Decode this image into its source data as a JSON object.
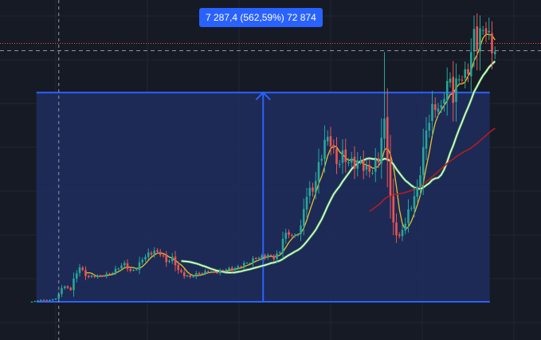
{
  "colors": {
    "background": "#161a25",
    "grid": "#232734",
    "measure_fill": "#1e2c5c",
    "measure_line": "#2962ff",
    "candle_up": "#26a69a",
    "candle_down": "#ef5350",
    "ma_fast": "#e6c229",
    "ma_mid_white": "#ffffff",
    "ma_mid_green": "#4caf50",
    "ma_slow": "#b71c1c",
    "crosshair": "#9598a1",
    "last_price_line": "#ef5350"
  },
  "measure_tool": {
    "label": "7 287,4 (562,59%) 72 874",
    "price_change": 7287.4,
    "percent_change": 562.59,
    "bars": 72874
  },
  "chart_data": {
    "type": "candlestick",
    "title": "",
    "xlabel": "",
    "ylabel": "",
    "ylim": [
      -250,
      10000
    ],
    "grid": true,
    "close_anchors": [
      [
        0,
        0
      ],
      [
        3,
        60
      ],
      [
        6,
        60
      ],
      [
        8,
        110
      ],
      [
        9,
        260
      ],
      [
        10,
        480
      ],
      [
        11,
        520
      ],
      [
        13,
        430
      ],
      [
        14,
        800
      ],
      [
        16,
        1230
      ],
      [
        18,
        900
      ],
      [
        19,
        850
      ],
      [
        21,
        900
      ],
      [
        23,
        920
      ],
      [
        25,
        940
      ],
      [
        27,
        1000
      ],
      [
        29,
        1200
      ],
      [
        31,
        1350
      ],
      [
        33,
        1050
      ],
      [
        35,
        1130
      ],
      [
        37,
        1500
      ],
      [
        39,
        1700
      ],
      [
        41,
        1750
      ],
      [
        43,
        1650
      ],
      [
        45,
        1400
      ],
      [
        47,
        1550
      ],
      [
        49,
        1100
      ],
      [
        51,
        900
      ],
      [
        53,
        860
      ],
      [
        55,
        980
      ],
      [
        57,
        1000
      ],
      [
        59,
        1050
      ],
      [
        61,
        1010
      ],
      [
        63,
        1080
      ],
      [
        65,
        1150
      ],
      [
        67,
        1100
      ],
      [
        69,
        1200
      ],
      [
        71,
        1350
      ],
      [
        73,
        1400
      ],
      [
        75,
        1500
      ],
      [
        77,
        1550
      ],
      [
        79,
        1650
      ],
      [
        81,
        1550
      ],
      [
        83,
        1700
      ],
      [
        84,
        2200
      ],
      [
        86,
        2400
      ],
      [
        88,
        2300
      ],
      [
        90,
        2600
      ],
      [
        92,
        3700
      ],
      [
        94,
        3900
      ],
      [
        96,
        4800
      ],
      [
        98,
        5600
      ],
      [
        100,
        5500
      ],
      [
        102,
        4800
      ],
      [
        104,
        5200
      ],
      [
        106,
        4900
      ],
      [
        108,
        4700
      ],
      [
        110,
        4850
      ],
      [
        112,
        4700
      ],
      [
        114,
        4600
      ],
      [
        116,
        4900
      ],
      [
        117,
        5600
      ],
      [
        118,
        6200
      ],
      [
        119,
        5200
      ],
      [
        120,
        3700
      ],
      [
        121,
        2800
      ],
      [
        122,
        2400
      ],
      [
        123,
        2200
      ],
      [
        124,
        2500
      ],
      [
        125,
        2700
      ],
      [
        126,
        3100
      ],
      [
        128,
        3700
      ],
      [
        129,
        4000
      ],
      [
        131,
        5200
      ],
      [
        132,
        5900
      ],
      [
        134,
        6600
      ],
      [
        135,
        6900
      ],
      [
        137,
        6800
      ],
      [
        138,
        7400
      ],
      [
        140,
        7600
      ],
      [
        141,
        7000
      ],
      [
        143,
        7900
      ],
      [
        145,
        8000
      ],
      [
        147,
        8600
      ],
      [
        148,
        9200
      ],
      [
        149,
        8900
      ],
      [
        150,
        9150
      ],
      [
        151,
        9500
      ],
      [
        152,
        9700
      ],
      [
        153,
        9300
      ],
      [
        154,
        9000
      ],
      [
        155,
        8750
      ]
    ],
    "spikes": [
      {
        "bar": 118,
        "high": 8700
      },
      {
        "bar": 153,
        "high": 9900
      }
    ],
    "moving_averages": [
      {
        "role": "fast",
        "period": 5,
        "start": 18
      },
      {
        "role": "mid",
        "period": 18,
        "start": 50
      },
      {
        "role": "slow",
        "period": 48,
        "start": 113
      }
    ],
    "measure_range": {
      "from_bar": 1,
      "to_bar": 153,
      "price_low": 0,
      "price_high": 7287.4
    },
    "crosshair_bar": 9,
    "last_price": 8750,
    "crosshair_price": 8750,
    "last_price_marker": 9000
  }
}
